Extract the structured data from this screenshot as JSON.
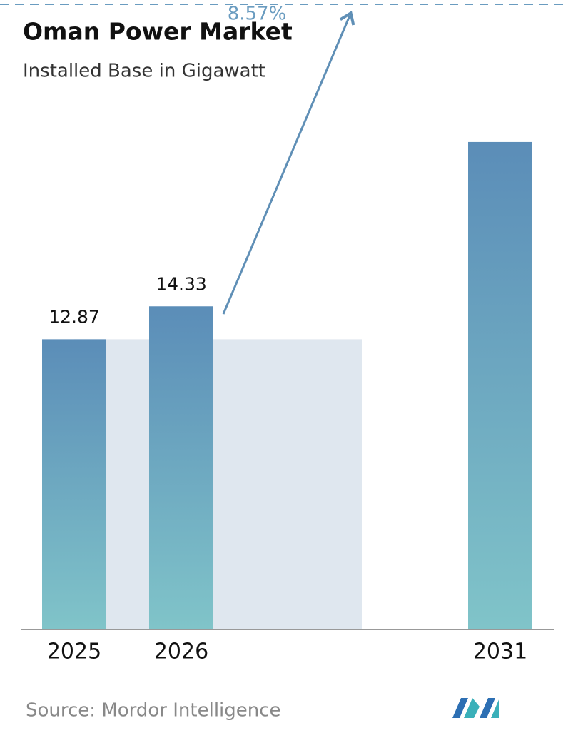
{
  "chart_data": {
    "type": "bar",
    "title": "Oman Power Market",
    "subtitle": "Installed Base in Gigawatt",
    "categories": [
      "2025",
      "2026",
      "2031"
    ],
    "values": [
      12.87,
      14.33,
      21.62
    ],
    "value_labels": [
      "12.87",
      "14.33",
      null
    ],
    "color": "#5b8db8",
    "color_bottom": "#80c4c9",
    "ylim": [
      0,
      27.6
    ],
    "annotation": "8.57%",
    "source": "Source:  Mordor Intelligence"
  }
}
